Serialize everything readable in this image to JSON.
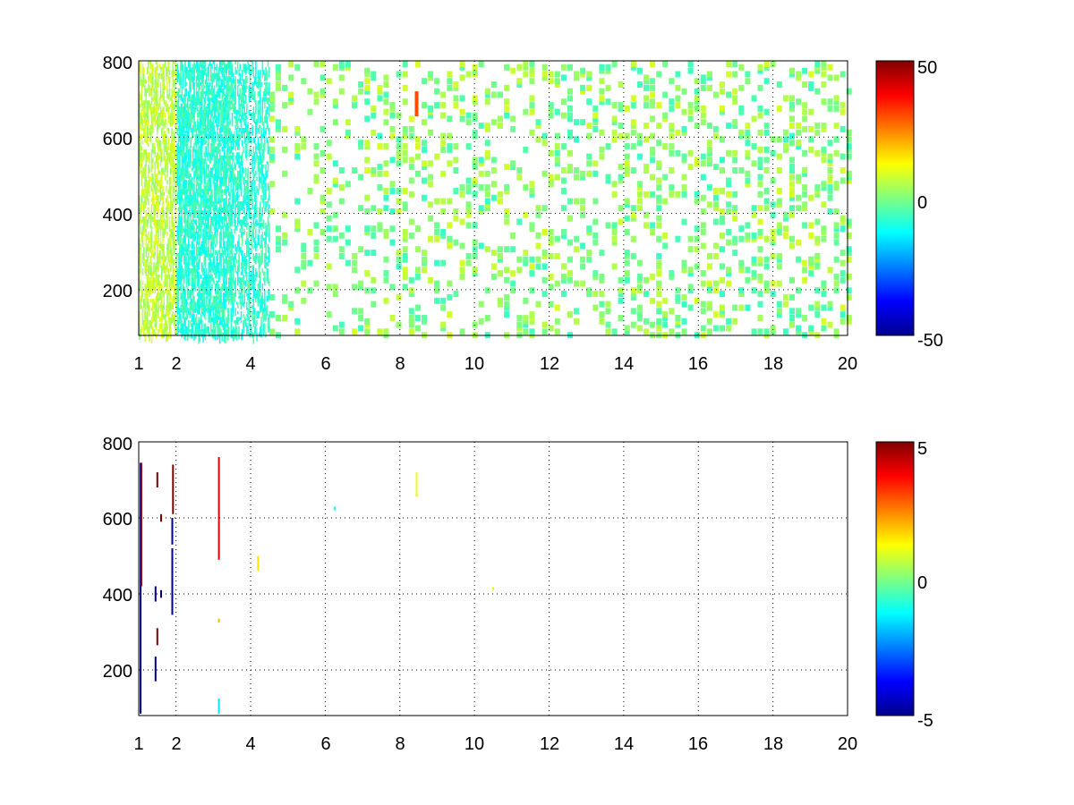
{
  "figure": {
    "background": "#ffffff",
    "colormap": "jet"
  },
  "chart_data": [
    {
      "type": "heatmap",
      "title": "",
      "xlabel": "",
      "ylabel": "",
      "xlim": [
        1,
        20
      ],
      "ylim": [
        80,
        800
      ],
      "xticks": [
        1,
        2,
        4,
        6,
        8,
        10,
        12,
        14,
        16,
        18,
        20
      ],
      "xtick_labels": [
        "1",
        "2",
        "4",
        "6",
        "8",
        "10",
        "12",
        "14",
        "16",
        "18",
        "20"
      ],
      "yticks": [
        200,
        400,
        600,
        800
      ],
      "ytick_labels": [
        "200",
        "400",
        "600",
        "800"
      ],
      "grid": true,
      "colorbar": {
        "min": -50,
        "max": 50,
        "ticks": [
          -50,
          0,
          50
        ],
        "tick_labels": [
          "-50",
          "0",
          "50"
        ]
      },
      "description_of_values": "sparse scattered cells mostly near 0 (green/cyan/yellow), denser at low x; one orange cell near x≈8.4, y≈700"
    },
    {
      "type": "heatmap",
      "title": "",
      "xlabel": "",
      "ylabel": "",
      "xlim": [
        1,
        20
      ],
      "ylim": [
        80,
        800
      ],
      "xticks": [
        1,
        2,
        4,
        6,
        8,
        10,
        12,
        14,
        16,
        18,
        20
      ],
      "xtick_labels": [
        "1",
        "2",
        "4",
        "6",
        "8",
        "10",
        "12",
        "14",
        "16",
        "18",
        "20"
      ],
      "yticks": [
        200,
        400,
        600,
        800
      ],
      "ytick_labels": [
        "200",
        "400",
        "600",
        "800"
      ],
      "grid": true,
      "colorbar": {
        "min": -5,
        "max": 5,
        "ticks": [
          -5,
          0,
          5
        ],
        "tick_labels": [
          "-5",
          "0",
          "5"
        ]
      },
      "marks": [
        {
          "x": 1.05,
          "y0": 85,
          "y1": 745,
          "value": -5
        },
        {
          "x": 1.07,
          "y0": 420,
          "y1": 745,
          "value": 5
        },
        {
          "x": 1.45,
          "y0": 170,
          "y1": 235,
          "value": -5
        },
        {
          "x": 1.45,
          "y0": 380,
          "y1": 420,
          "value": -5
        },
        {
          "x": 1.5,
          "y0": 265,
          "y1": 310,
          "value": 5
        },
        {
          "x": 1.5,
          "y0": 680,
          "y1": 720,
          "value": 5
        },
        {
          "x": 1.6,
          "y0": 390,
          "y1": 410,
          "value": -5
        },
        {
          "x": 1.6,
          "y0": 590,
          "y1": 610,
          "value": 5
        },
        {
          "x": 1.9,
          "y0": 345,
          "y1": 520,
          "value": -5
        },
        {
          "x": 1.9,
          "y0": 530,
          "y1": 600,
          "value": -5
        },
        {
          "x": 1.92,
          "y0": 610,
          "y1": 740,
          "value": 5
        },
        {
          "x": 3.15,
          "y0": 490,
          "y1": 760,
          "value": 4
        },
        {
          "x": 3.15,
          "y0": 85,
          "y1": 125,
          "value": -1.5
        },
        {
          "x": 3.15,
          "y0": 325,
          "y1": 335,
          "value": 2
        },
        {
          "x": 4.2,
          "y0": 460,
          "y1": 500,
          "value": 1.5
        },
        {
          "x": 6.25,
          "y0": 620,
          "y1": 630,
          "value": -1
        },
        {
          "x": 8.45,
          "y0": 655,
          "y1": 720,
          "value": 1
        },
        {
          "x": 10.5,
          "y0": 410,
          "y1": 418,
          "value": 1
        }
      ]
    }
  ]
}
